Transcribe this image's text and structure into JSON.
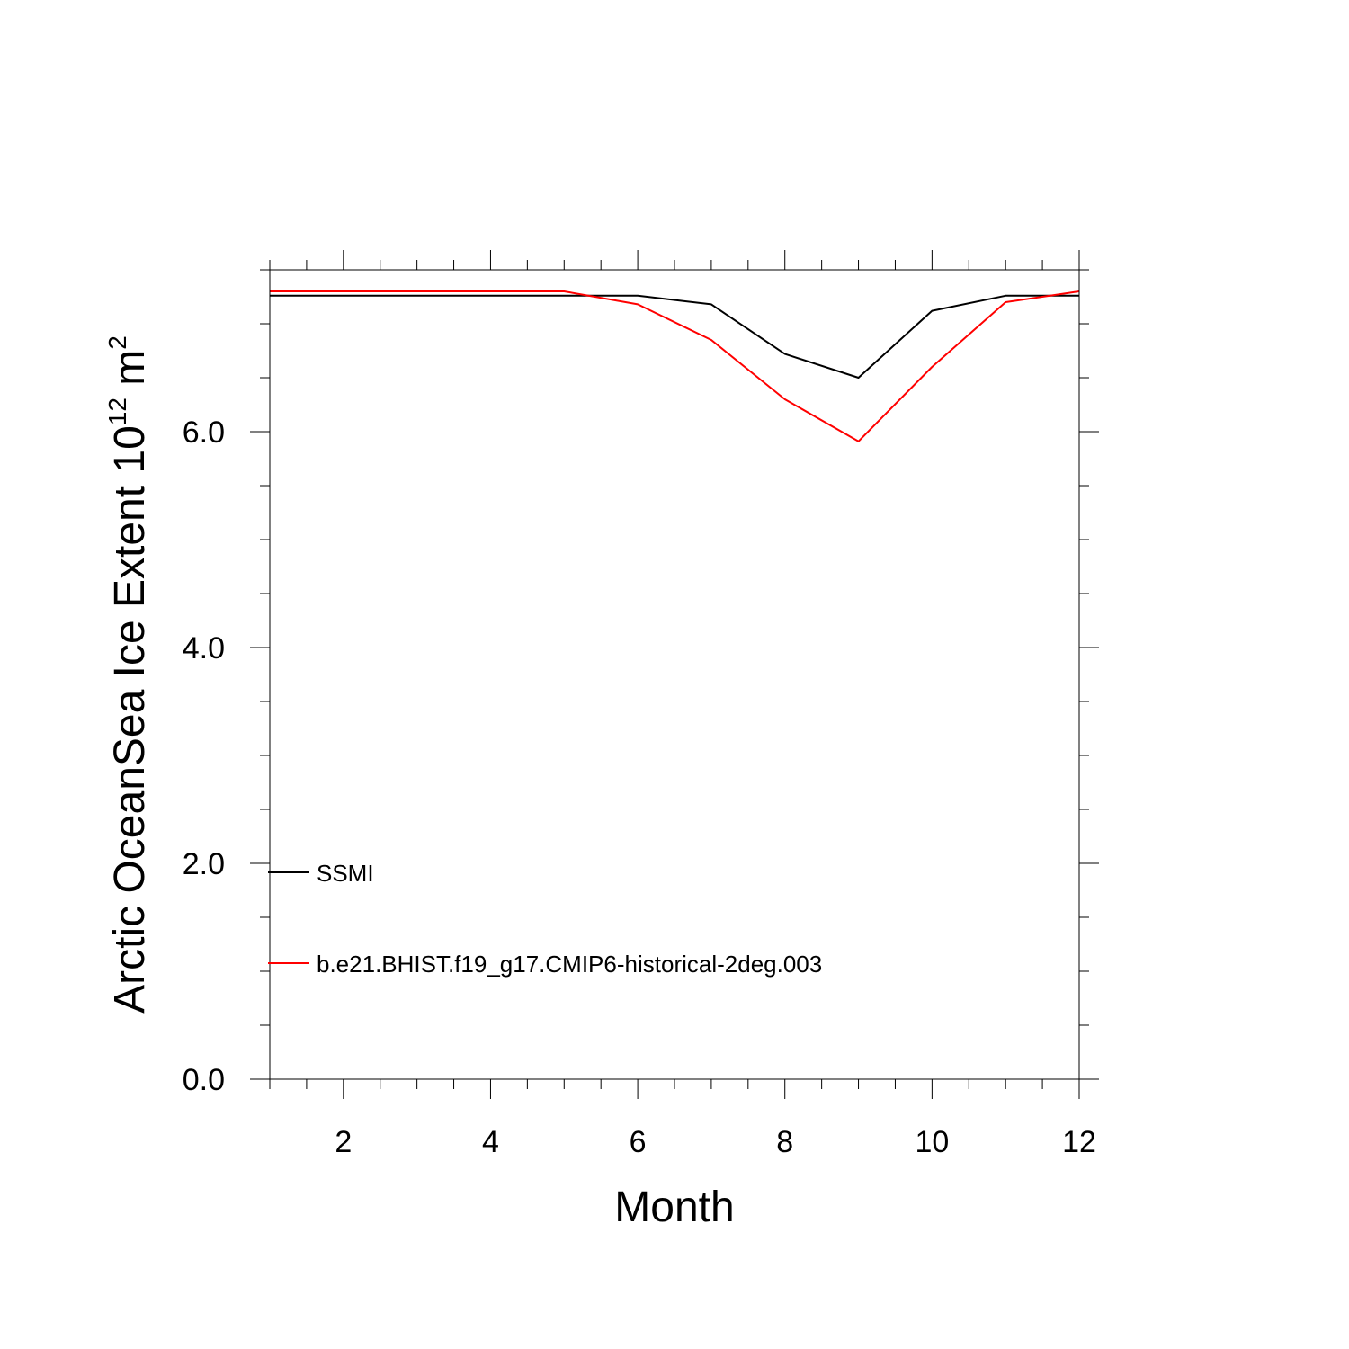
{
  "chart_data": {
    "type": "line",
    "title": "",
    "xlabel": "Month",
    "ylabel": {
      "prefix": "Arctic OceanSea Ice Extent 10",
      "exponent_1": "12",
      "middle": " m",
      "exponent_2": "2"
    },
    "xlim": [
      1,
      12
    ],
    "ylim": [
      0,
      7.5
    ],
    "x_major_ticks": [
      2,
      4,
      6,
      8,
      10,
      12
    ],
    "x_tick_labels": [
      "2",
      "4",
      "6",
      "8",
      "10",
      "12"
    ],
    "x_minor_step": 0.5,
    "y_major_ticks": [
      0,
      2,
      4,
      6
    ],
    "y_tick_labels": [
      "0.0",
      "2.0",
      "4.0",
      "6.0"
    ],
    "y_minor_step": 0.5,
    "grid": false,
    "legend_position": "bottom-left",
    "x": [
      1,
      2,
      3,
      4,
      5,
      6,
      7,
      8,
      9,
      10,
      11,
      12
    ],
    "series": [
      {
        "name": "SSMI",
        "color": "#000000",
        "values": [
          7.26,
          7.26,
          7.26,
          7.26,
          7.26,
          7.26,
          7.18,
          6.72,
          6.5,
          7.12,
          7.26,
          7.26
        ]
      },
      {
        "name": "b.e21.BHIST.f19_g17.CMIP6-historical-2deg.003",
        "color": "#ff0000",
        "values": [
          7.3,
          7.3,
          7.3,
          7.3,
          7.3,
          7.18,
          6.85,
          6.3,
          5.91,
          6.6,
          7.2,
          7.3
        ]
      }
    ]
  }
}
